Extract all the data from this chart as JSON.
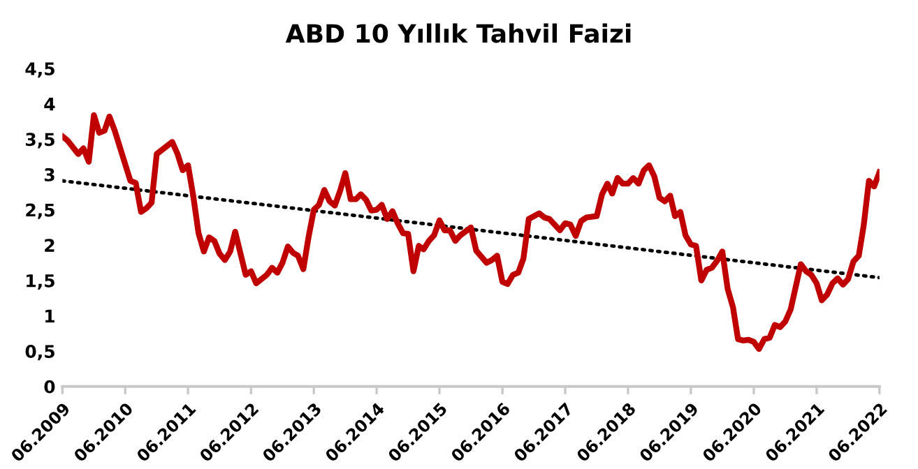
{
  "chart_data": {
    "type": "line",
    "title": "ABD 10 Yıllık Tahvil Faizi",
    "series": [
      {
        "color": "#c00000",
        "line_style": "solid",
        "marker": "none",
        "x": [
          "2009-06",
          "2009-07",
          "2009-09",
          "2009-10",
          "2009-11",
          "2009-12",
          "2010-01",
          "2010-02",
          "2010-03",
          "2010-04",
          "2010-07",
          "2010-08",
          "2010-09",
          "2010-10",
          "2010-11",
          "2010-12",
          "2011-03",
          "2011-04",
          "2011-05",
          "2011-06",
          "2011-07",
          "2011-08",
          "2011-09",
          "2011-10",
          "2011-11",
          "2011-12",
          "2012-01",
          "2012-02",
          "2012-03",
          "2012-04",
          "2012-05",
          "2012-06",
          "2012-07",
          "2012-09",
          "2012-10",
          "2012-11",
          "2012-12",
          "2013-01",
          "2013-02",
          "2013-03",
          "2013-04",
          "2013-05",
          "2013-06",
          "2013-07",
          "2013-08",
          "2013-09",
          "2013-10",
          "2013-11",
          "2013-12",
          "2014-01",
          "2014-02",
          "2014-03",
          "2014-04",
          "2014-05",
          "2014-06",
          "2014-07",
          "2014-08",
          "2014-09",
          "2014-10",
          "2014-11",
          "2014-12",
          "2015-01",
          "2015-02",
          "2015-03",
          "2015-04",
          "2015-05",
          "2015-06",
          "2015-07",
          "2015-08",
          "2015-09",
          "2015-10",
          "2015-12",
          "2016-01",
          "2016-03",
          "2016-04",
          "2016-05",
          "2016-06",
          "2016-07",
          "2016-08",
          "2016-09",
          "2016-10",
          "2016-11",
          "2017-01",
          "2017-02",
          "2017-03",
          "2017-05",
          "2017-06",
          "2017-07",
          "2017-08",
          "2017-09",
          "2017-10",
          "2017-12",
          "2018-01",
          "2018-02",
          "2018-03",
          "2018-04",
          "2018-05",
          "2018-06",
          "2018-07",
          "2018-08",
          "2018-09",
          "2018-10",
          "2018-11",
          "2018-12",
          "2019-01",
          "2019-02",
          "2019-03",
          "2019-04",
          "2019-05",
          "2019-06",
          "2019-07",
          "2019-08",
          "2019-09",
          "2019-10",
          "2019-11",
          "2019-12",
          "2020-01",
          "2020-02",
          "2020-03",
          "2020-04",
          "2020-05",
          "2020-06",
          "2020-07",
          "2020-08",
          "2020-09",
          "2020-10",
          "2020-11",
          "2020-12",
          "2021-01",
          "2021-03",
          "2021-04",
          "2021-05",
          "2021-06",
          "2021-07",
          "2021-08",
          "2021-09",
          "2021-10",
          "2021-11",
          "2021-12",
          "2022-01",
          "2022-02",
          "2022-03",
          "2022-04",
          "2022-05",
          "2022-06"
        ],
        "values": [
          3.54,
          3.48,
          3.29,
          3.37,
          3.18,
          3.84,
          3.59,
          3.62,
          3.82,
          3.62,
          2.91,
          2.88,
          2.47,
          2.52,
          2.6,
          3.29,
          3.46,
          3.29,
          3.06,
          3.13,
          2.7,
          2.17,
          1.91,
          2.11,
          2.06,
          1.88,
          1.79,
          1.91,
          2.19,
          1.88,
          1.58,
          1.63,
          1.46,
          1.58,
          1.68,
          1.61,
          1.75,
          1.98,
          1.89,
          1.85,
          1.66,
          2.11,
          2.5,
          2.57,
          2.78,
          2.62,
          2.56,
          2.77,
          3.02,
          2.65,
          2.65,
          2.72,
          2.64,
          2.49,
          2.5,
          2.57,
          2.37,
          2.48,
          2.31,
          2.17,
          2.16,
          1.63,
          1.99,
          1.94,
          2.06,
          2.14,
          2.35,
          2.21,
          2.21,
          2.06,
          2.14,
          2.25,
          1.92,
          1.75,
          1.79,
          1.85,
          1.48,
          1.45,
          1.58,
          1.61,
          1.81,
          2.37,
          2.45,
          2.39,
          2.37,
          2.21,
          2.31,
          2.29,
          2.13,
          2.34,
          2.39,
          2.41,
          2.72,
          2.87,
          2.73,
          2.95,
          2.87,
          2.87,
          2.95,
          2.87,
          3.06,
          3.13,
          2.97,
          2.67,
          2.62,
          2.7,
          2.41,
          2.47,
          2.14,
          2.01,
          1.99,
          1.5,
          1.65,
          1.68,
          1.78,
          1.91,
          1.38,
          1.12,
          0.67,
          0.65,
          0.66,
          0.63,
          0.53,
          0.67,
          0.69,
          0.87,
          0.84,
          0.92,
          1.09,
          1.73,
          1.63,
          1.58,
          1.46,
          1.22,
          1.3,
          1.46,
          1.53,
          1.44,
          1.52,
          1.77,
          1.85,
          2.27,
          2.91,
          2.83,
          3.03
        ]
      },
      {
        "type": "line",
        "color": "#000000",
        "line_style": "dotted",
        "marker": "none",
        "x": [
          "2009-06",
          "2022-06"
        ],
        "values": [
          2.91,
          1.54
        ]
      }
    ],
    "xlim": [
      "2009-06",
      "2022-06"
    ],
    "xticks": [
      {
        "value": "2009-06",
        "label": "06.2009"
      },
      {
        "value": "2010-06",
        "label": "06.2010"
      },
      {
        "value": "2011-06",
        "label": "06.2011"
      },
      {
        "value": "2012-06",
        "label": "06.2012"
      },
      {
        "value": "2013-06",
        "label": "06.2013"
      },
      {
        "value": "2014-06",
        "label": "06.2014"
      },
      {
        "value": "2015-06",
        "label": "06.2015"
      },
      {
        "value": "2016-06",
        "label": "06.2016"
      },
      {
        "value": "2017-06",
        "label": "06.2017"
      },
      {
        "value": "2018-06",
        "label": "06.2018"
      },
      {
        "value": "2019-06",
        "label": "06.2019"
      },
      {
        "value": "2020-06",
        "label": "06.2020"
      },
      {
        "value": "2021-06",
        "label": "06.2021"
      },
      {
        "value": "2022-06",
        "label": "06.2022"
      }
    ],
    "ylim": [
      0,
      4.5
    ],
    "yticks": [
      0,
      {
        "value": 0.5,
        "label": "0,5"
      },
      1,
      {
        "value": 1.5,
        "label": "1,5"
      },
      2,
      {
        "value": 2.5,
        "label": "2,5"
      },
      3,
      {
        "value": 3.5,
        "label": "3,5"
      },
      4,
      {
        "value": 4.5,
        "label": "4,5"
      }
    ],
    "grid": false,
    "legend": false
  }
}
